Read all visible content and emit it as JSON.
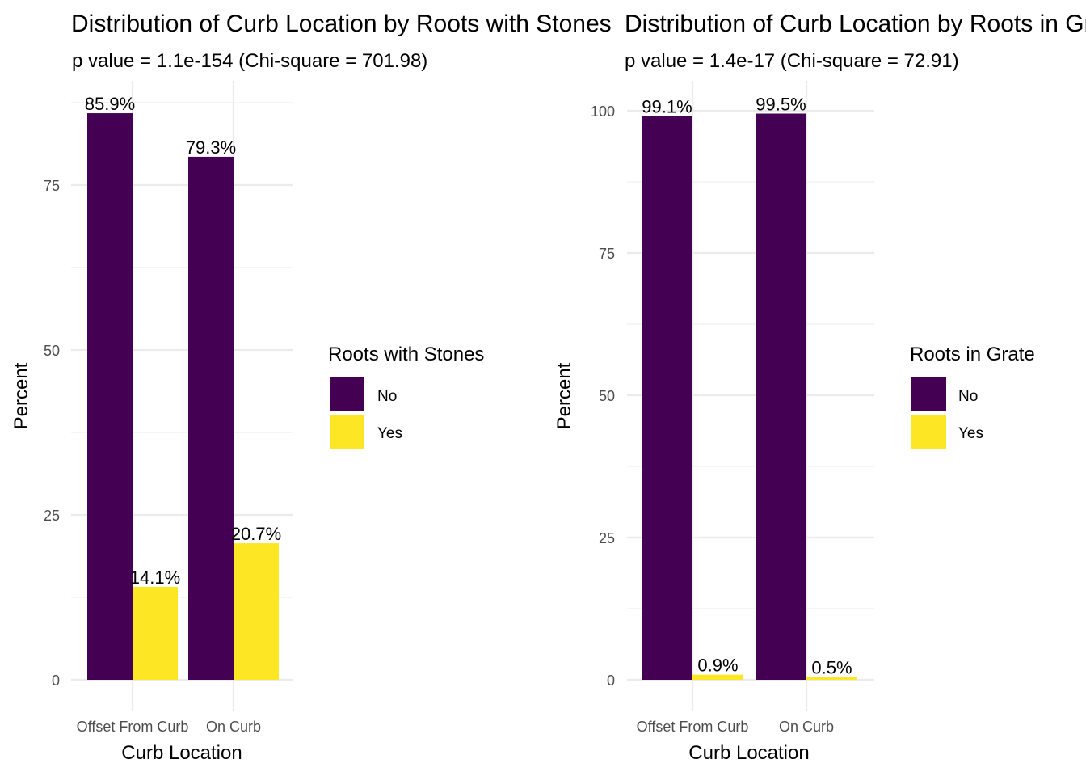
{
  "chart_data": [
    {
      "type": "bar",
      "title": "Distribution of Curb Location by Roots with Stones",
      "subtitle": "p value = 1.1e-154 (Chi-square = 701.98)",
      "xlabel": "Curb Location",
      "ylabel": "Percent",
      "categories": [
        "Offset From Curb",
        "On Curb"
      ],
      "yticks": [
        0,
        25,
        50,
        75
      ],
      "ylim": [
        0,
        88
      ],
      "legend": {
        "title": "Roots with Stones",
        "placement": "right"
      },
      "series": [
        {
          "name": "No",
          "color": "#440154",
          "values": [
            85.9,
            79.3
          ],
          "labels": [
            "85.9%",
            "79.3%"
          ]
        },
        {
          "name": "Yes",
          "color": "#FDE725",
          "values": [
            14.1,
            20.7
          ],
          "labels": [
            "14.1%",
            "20.7%"
          ]
        }
      ],
      "grid": true
    },
    {
      "type": "bar",
      "title": "Distribution of Curb Location by Roots in Grate",
      "subtitle": "p value = 1.4e-17 (Chi-square = 72.91)",
      "xlabel": "Curb Location",
      "ylabel": "Percent",
      "categories": [
        "Offset From Curb",
        "On Curb"
      ],
      "yticks": [
        0,
        25,
        50,
        75,
        100
      ],
      "ylim": [
        0,
        102
      ],
      "legend": {
        "title": "Roots in Grate",
        "placement": "right"
      },
      "series": [
        {
          "name": "No",
          "color": "#440154",
          "values": [
            99.1,
            99.5
          ],
          "labels": [
            "99.1%",
            "99.5%"
          ]
        },
        {
          "name": "Yes",
          "color": "#FDE725",
          "values": [
            0.9,
            0.5
          ],
          "labels": [
            "0.9%",
            "0.5%"
          ]
        }
      ],
      "grid": true
    }
  ]
}
